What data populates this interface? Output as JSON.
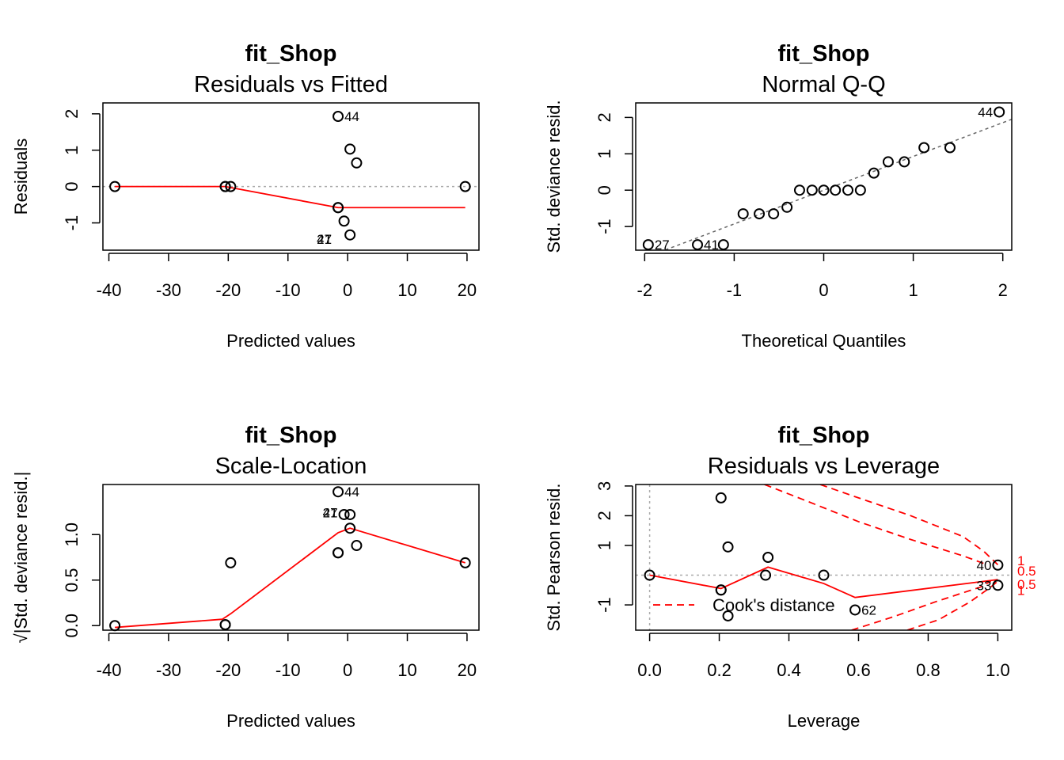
{
  "chart_data": [
    {
      "type": "scatter",
      "title": "fit_Shop",
      "subtitle": "Residuals vs Fitted",
      "xlabel": "Predicted values",
      "ylabel": "Residuals",
      "xlim": [
        -41,
        22
      ],
      "ylim": [
        -1.75,
        2.3
      ],
      "xticks": [
        -40,
        -30,
        -20,
        -10,
        0,
        10,
        20
      ],
      "xtick_labels": [
        "-40",
        "-30",
        "-20",
        "-10",
        "0",
        "10",
        "20"
      ],
      "yticks": [
        -1,
        0,
        1,
        2
      ],
      "ytick_labels": [
        "-1",
        "0",
        "1",
        "2"
      ],
      "points": [
        {
          "x": -39.0,
          "y": 0.0
        },
        {
          "x": -20.5,
          "y": 0.0
        },
        {
          "x": -20.5,
          "y": 0.0
        },
        {
          "x": -19.6,
          "y": 0.0
        },
        {
          "x": -1.6,
          "y": 1.93
        },
        {
          "x": 0.4,
          "y": 1.03
        },
        {
          "x": 1.5,
          "y": 0.65
        },
        {
          "x": -1.6,
          "y": -0.58
        },
        {
          "x": -1.6,
          "y": -0.58
        },
        {
          "x": -0.6,
          "y": -0.95
        },
        {
          "x": 0.4,
          "y": -1.33
        },
        {
          "x": 19.7,
          "y": 0.0
        }
      ],
      "point_labels": [
        {
          "x": -1.6,
          "y": 1.93,
          "text": "44",
          "pos": "right"
        },
        {
          "x": -1.6,
          "y": -1.45,
          "text": "41",
          "pos": "left"
        },
        {
          "x": -1.6,
          "y": -1.45,
          "text": "27",
          "pos": "left"
        }
      ],
      "reference_line": {
        "y": 0,
        "style": "dotted",
        "color": "#aaaaaa"
      },
      "smooth_line": {
        "color": "#ff0000",
        "points": [
          [
            -39.0,
            0.0
          ],
          [
            -20.5,
            0.0
          ],
          [
            -1.6,
            -0.58
          ],
          [
            19.7,
            -0.58
          ]
        ]
      }
    },
    {
      "type": "scatter",
      "title": "fit_Shop",
      "subtitle": "Normal Q-Q",
      "xlabel": "Theoretical Quantiles",
      "ylabel": "Std. deviance resid.",
      "xlim": [
        -2.1,
        2.1
      ],
      "ylim": [
        -1.65,
        2.4
      ],
      "xticks": [
        -2,
        -1,
        0,
        1,
        2
      ],
      "xtick_labels": [
        "-2",
        "-1",
        "0",
        "1",
        "2"
      ],
      "yticks": [
        -1,
        0,
        1,
        2
      ],
      "ytick_labels": [
        "-1",
        "0",
        "1",
        "2"
      ],
      "points": [
        {
          "x": -1.96,
          "y": -1.5
        },
        {
          "x": -1.41,
          "y": -1.5
        },
        {
          "x": -1.12,
          "y": -1.5
        },
        {
          "x": -0.9,
          "y": -0.65
        },
        {
          "x": -0.72,
          "y": -0.65
        },
        {
          "x": -0.56,
          "y": -0.65
        },
        {
          "x": -0.41,
          "y": -0.47
        },
        {
          "x": -0.27,
          "y": 0.0
        },
        {
          "x": -0.13,
          "y": 0.0
        },
        {
          "x": 0.0,
          "y": 0.0
        },
        {
          "x": 0.13,
          "y": 0.0
        },
        {
          "x": 0.27,
          "y": 0.0
        },
        {
          "x": 0.41,
          "y": 0.0
        },
        {
          "x": 0.56,
          "y": 0.47
        },
        {
          "x": 0.72,
          "y": 0.78
        },
        {
          "x": 0.9,
          "y": 0.78
        },
        {
          "x": 1.12,
          "y": 1.17
        },
        {
          "x": 1.41,
          "y": 1.17
        },
        {
          "x": 1.96,
          "y": 2.15
        }
      ],
      "point_labels": [
        {
          "x": -1.96,
          "y": -1.5,
          "text": "27",
          "pos": "right"
        },
        {
          "x": -1.41,
          "y": -1.5,
          "text": "41",
          "pos": "right"
        },
        {
          "x": 1.96,
          "y": 2.15,
          "text": "44",
          "pos": "left"
        }
      ],
      "qq_line": {
        "style": "dashed",
        "color": "#666666",
        "points": [
          [
            -2.1,
            -1.95
          ],
          [
            2.1,
            1.95
          ]
        ]
      }
    },
    {
      "type": "scatter",
      "title": "fit_Shop",
      "subtitle": "Scale-Location",
      "xlabel": "Predicted values",
      "ylabel": "√|Std. deviance resid.|",
      "xlim": [
        -41,
        22
      ],
      "ylim": [
        -0.05,
        1.55
      ],
      "xticks": [
        -40,
        -30,
        -20,
        -10,
        0,
        10,
        20
      ],
      "xtick_labels": [
        "-40",
        "-30",
        "-20",
        "-10",
        "0",
        "10",
        "20"
      ],
      "yticks": [
        0.0,
        0.5,
        1.0
      ],
      "ytick_labels": [
        "0.0",
        "0.5",
        "1.0"
      ],
      "points": [
        {
          "x": -39.0,
          "y": 0.0
        },
        {
          "x": -20.5,
          "y": 0.01
        },
        {
          "x": -20.5,
          "y": 0.01
        },
        {
          "x": -19.6,
          "y": 0.69
        },
        {
          "x": -1.6,
          "y": 1.47
        },
        {
          "x": -0.6,
          "y": 1.22
        },
        {
          "x": 0.4,
          "y": 1.22
        },
        {
          "x": 0.4,
          "y": 1.07
        },
        {
          "x": 1.5,
          "y": 0.88
        },
        {
          "x": -1.6,
          "y": 0.8
        },
        {
          "x": -1.6,
          "y": 0.8
        },
        {
          "x": 19.7,
          "y": 0.69
        }
      ],
      "point_labels": [
        {
          "x": -1.6,
          "y": 1.47,
          "text": "44",
          "pos": "right"
        },
        {
          "x": -0.6,
          "y": 1.24,
          "text": "41",
          "pos": "left"
        },
        {
          "x": -0.6,
          "y": 1.24,
          "text": "27",
          "pos": "left"
        }
      ],
      "smooth_line": {
        "color": "#ff0000",
        "points": [
          [
            -39.0,
            -0.02
          ],
          [
            -21.0,
            0.07
          ],
          [
            -19.6,
            0.13
          ],
          [
            -1.6,
            1.02
          ],
          [
            0.4,
            1.07
          ],
          [
            19.7,
            0.69
          ]
        ]
      }
    },
    {
      "type": "scatter",
      "title": "fit_Shop",
      "subtitle": "Residuals vs Leverage",
      "xlabel": "Leverage",
      "ylabel": "Std. Pearson resid.",
      "xlim": [
        -0.04,
        1.04
      ],
      "ylim": [
        -1.85,
        3.05
      ],
      "xticks": [
        0.0,
        0.2,
        0.4,
        0.6,
        0.8,
        1.0
      ],
      "xtick_labels": [
        "0.0",
        "0.2",
        "0.4",
        "0.6",
        "0.8",
        "1.0"
      ],
      "yticks": [
        -1,
        1,
        2,
        3
      ],
      "ytick_labels": [
        "-1",
        "1",
        "2",
        "3"
      ],
      "points": [
        {
          "x": 0.0,
          "y": 0.0
        },
        {
          "x": 0.205,
          "y": 2.6
        },
        {
          "x": 0.225,
          "y": 0.95
        },
        {
          "x": 0.205,
          "y": -0.5
        },
        {
          "x": 0.205,
          "y": -0.5
        },
        {
          "x": 0.225,
          "y": -1.37
        },
        {
          "x": 0.333,
          "y": 0.0
        },
        {
          "x": 0.34,
          "y": 0.6
        },
        {
          "x": 0.5,
          "y": 0.0
        },
        {
          "x": 0.59,
          "y": -1.17
        },
        {
          "x": 1.0,
          "y": 0.34
        },
        {
          "x": 1.0,
          "y": -0.34
        }
      ],
      "point_labels": [
        {
          "x": 1.0,
          "y": 0.34,
          "text": "40",
          "pos": "left"
        },
        {
          "x": 1.0,
          "y": -0.34,
          "text": "33",
          "pos": "left"
        },
        {
          "x": 0.59,
          "y": -1.17,
          "text": "62",
          "pos": "right"
        }
      ],
      "reference_lines": [
        {
          "y": 0,
          "style": "dotted",
          "color": "#aaaaaa"
        },
        {
          "x": 0,
          "style": "dotted",
          "color": "#aaaaaa"
        }
      ],
      "smooth_line": {
        "color": "#ff0000",
        "points": [
          [
            0.0,
            0.0
          ],
          [
            0.205,
            -0.45
          ],
          [
            0.34,
            0.27
          ],
          [
            0.5,
            -0.28
          ],
          [
            0.59,
            -0.75
          ],
          [
            1.0,
            -0.15
          ]
        ]
      },
      "cooks_contours": {
        "color": "#ff0000",
        "style": "dashed",
        "lines": [
          [
            [
              0.33,
              3.05
            ],
            [
              0.45,
              2.5
            ],
            [
              0.6,
              1.8
            ],
            [
              0.75,
              1.2
            ],
            [
              0.9,
              0.65
            ],
            [
              0.97,
              0.35
            ]
          ],
          [
            [
              0.49,
              3.05
            ],
            [
              0.6,
              2.6
            ],
            [
              0.75,
              2.0
            ],
            [
              0.9,
              1.3
            ],
            [
              0.96,
              0.8
            ],
            [
              1.0,
              0.35
            ]
          ],
          [
            [
              0.58,
              -1.85
            ],
            [
              0.7,
              -1.4
            ],
            [
              0.82,
              -0.9
            ],
            [
              0.95,
              -0.4
            ],
            [
              0.98,
              -0.2
            ]
          ],
          [
            [
              0.74,
              -1.85
            ],
            [
              0.83,
              -1.5
            ],
            [
              0.92,
              -0.9
            ],
            [
              0.98,
              -0.4
            ],
            [
              1.0,
              -0.2
            ]
          ]
        ],
        "level_labels": [
          {
            "x": 1.06,
            "y": 0.5,
            "text": "1"
          },
          {
            "x": 1.06,
            "y": 0.15,
            "text": "0.5"
          },
          {
            "x": 1.06,
            "y": -0.3,
            "text": "0.5"
          },
          {
            "x": 1.06,
            "y": -0.5,
            "text": "1"
          }
        ]
      },
      "legend": {
        "position": "bottom-left",
        "entries": [
          {
            "label": "Cook's distance",
            "color": "#ff0000",
            "style": "dashed"
          }
        ]
      }
    }
  ]
}
